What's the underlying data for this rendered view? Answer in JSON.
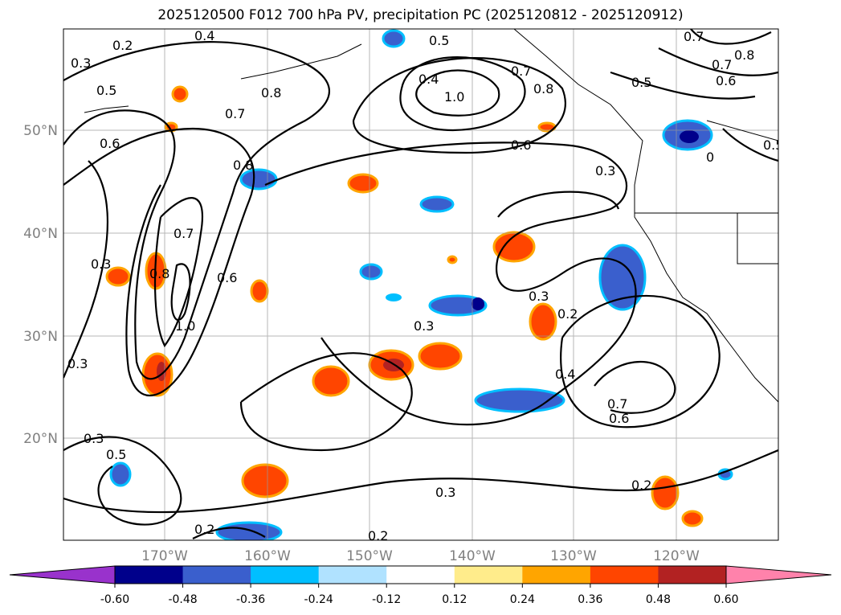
{
  "title": "2025120500 F012 700 hPa PV, precipitation PC (2025120812 - 2025120912)",
  "map": {
    "lon_range": [
      -180,
      -110
    ],
    "lat_range": [
      10,
      60
    ],
    "lat_ticks": [
      "50°N",
      "40°N",
      "30°N",
      "20°N"
    ],
    "lon_ticks": [
      "170°W",
      "160°W",
      "150°W",
      "140°W",
      "130°W",
      "120°W"
    ],
    "contour_labels": [
      "0.2",
      "0.4",
      "0.3",
      "0.5",
      "0.8",
      "0.7",
      "0.6",
      "0.8",
      "0.7",
      "0.3",
      "0.8",
      "0.6",
      "1.0",
      "0.3",
      "0.3",
      "0.5",
      "0.2",
      "0.5",
      "0.4",
      "1.0",
      "0.7",
      "0.8",
      "0.6",
      "0.3",
      "0.7",
      "0.7",
      "0.8",
      "0.5",
      "0.6",
      "0.5",
      "0",
      "0.3",
      "0.3",
      "0.2",
      "0.4",
      "0.7",
      "0.6",
      "0.3",
      "0.2",
      "0.2"
    ]
  },
  "colorbar": {
    "levels": [
      "-0.60",
      "-0.48",
      "-0.36",
      "-0.24",
      "-0.12",
      "0.12",
      "0.24",
      "0.36",
      "0.48",
      "0.60"
    ],
    "colors": [
      "#9932CC",
      "#00008B",
      "#3A5FCD",
      "#00BFFF",
      "#B0E2FF",
      "#FFFFFF",
      "#FFEC8B",
      "#FFA500",
      "#FF4500",
      "#B22222",
      "#FF82AB"
    ]
  }
}
